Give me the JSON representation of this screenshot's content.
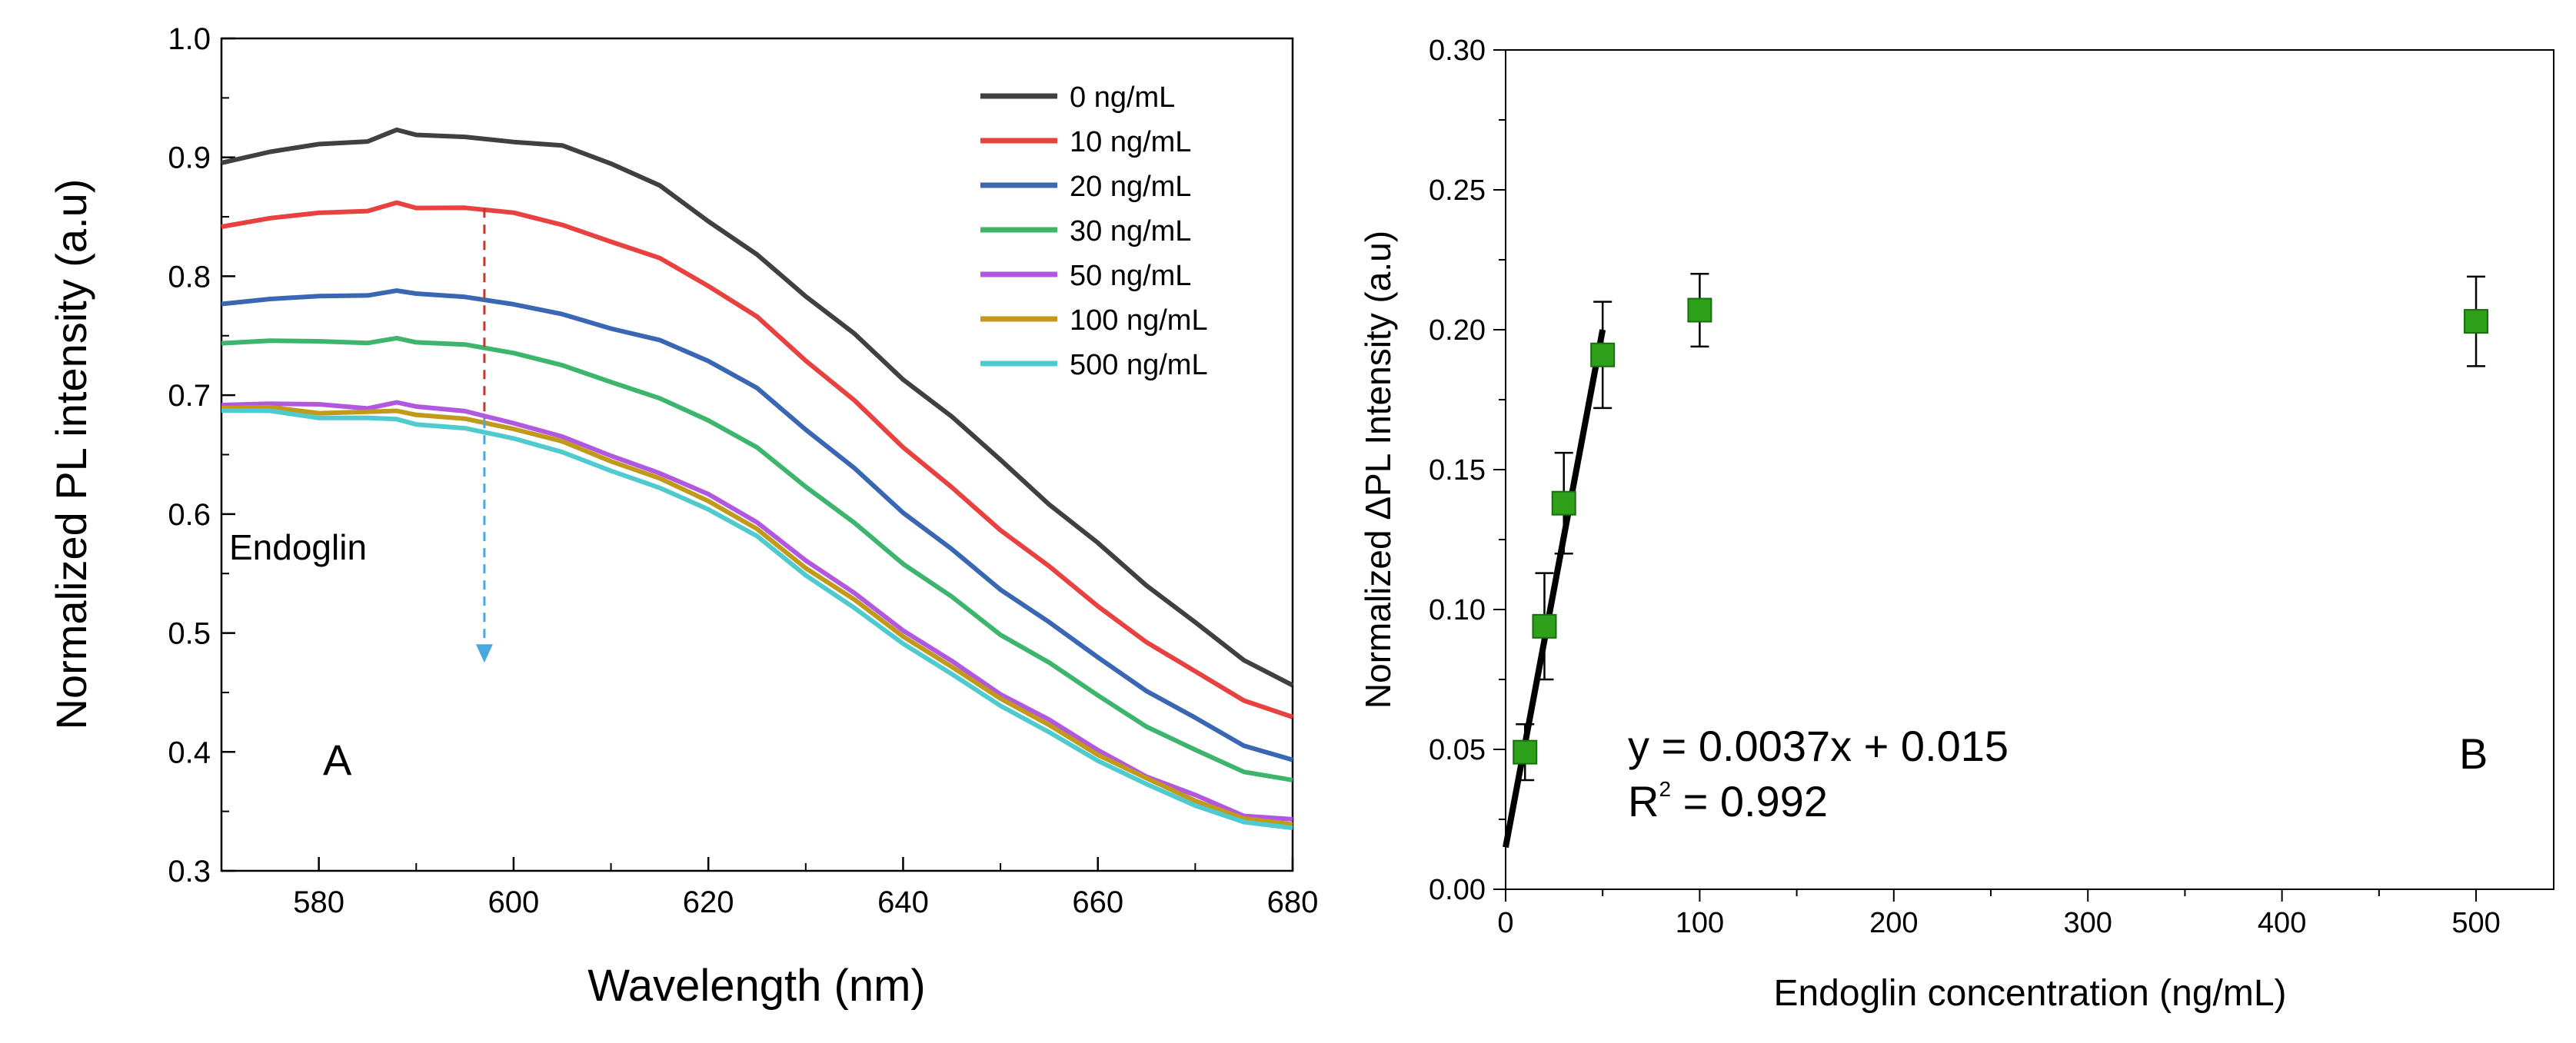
{
  "chart_data": [
    {
      "panel": "A",
      "type": "line",
      "title": "",
      "xlabel": "Wavelength (nm)",
      "ylabel": "Normalized PL intensity (a.u)",
      "xlim": [
        570,
        680
      ],
      "ylim": [
        0.3,
        1.0
      ],
      "xticks": [
        580,
        600,
        620,
        640,
        660,
        680
      ],
      "yticks": [
        0.3,
        0.4,
        0.5,
        0.6,
        0.7,
        0.8,
        0.9,
        1.0
      ],
      "panel_label": "A",
      "annotation": "Endoglin",
      "arrow": {
        "x": 597,
        "y_start": 0.857,
        "y_end": 0.475
      },
      "legend_position": "top-right",
      "x": [
        570,
        575,
        580,
        585,
        588,
        590,
        595,
        600,
        605,
        610,
        615,
        620,
        625,
        630,
        635,
        640,
        645,
        650,
        655,
        660,
        665,
        670,
        675,
        680
      ],
      "series": [
        {
          "name": "0 ng/mL",
          "color": "#404040",
          "values": [
            0.895,
            0.905,
            0.91,
            0.915,
            0.922,
            0.92,
            0.917,
            0.914,
            0.91,
            0.896,
            0.875,
            0.848,
            0.818,
            0.785,
            0.75,
            0.715,
            0.68,
            0.645,
            0.61,
            0.575,
            0.54,
            0.508,
            0.478,
            0.455
          ]
        },
        {
          "name": "10 ng/mL",
          "color": "#e8413f",
          "values": [
            0.843,
            0.848,
            0.852,
            0.856,
            0.86,
            0.859,
            0.857,
            0.855,
            0.843,
            0.83,
            0.815,
            0.793,
            0.765,
            0.73,
            0.695,
            0.658,
            0.622,
            0.588,
            0.555,
            0.523,
            0.493,
            0.466,
            0.445,
            0.428
          ]
        },
        {
          "name": "20 ng/mL",
          "color": "#3a67b3",
          "values": [
            0.778,
            0.78,
            0.782,
            0.785,
            0.786,
            0.787,
            0.782,
            0.778,
            0.768,
            0.757,
            0.746,
            0.73,
            0.705,
            0.672,
            0.638,
            0.603,
            0.57,
            0.538,
            0.508,
            0.48,
            0.452,
            0.427,
            0.407,
            0.392
          ]
        },
        {
          "name": "30 ng/mL",
          "color": "#3db56d",
          "values": [
            0.745,
            0.745,
            0.744,
            0.745,
            0.746,
            0.746,
            0.742,
            0.737,
            0.725,
            0.712,
            0.697,
            0.68,
            0.655,
            0.624,
            0.592,
            0.56,
            0.53,
            0.5,
            0.474,
            0.448,
            0.422,
            0.4,
            0.385,
            0.375
          ]
        },
        {
          "name": "50 ng/mL",
          "color": "#b257e0",
          "values": [
            0.693,
            0.692,
            0.691,
            0.69,
            0.692,
            0.692,
            0.686,
            0.678,
            0.665,
            0.65,
            0.634,
            0.618,
            0.592,
            0.562,
            0.533,
            0.504,
            0.476,
            0.45,
            0.426,
            0.402,
            0.38,
            0.362,
            0.348,
            0.342
          ]
        },
        {
          "name": "100 ng/mL",
          "color": "#c19a1a",
          "values": [
            0.69,
            0.688,
            0.686,
            0.684,
            0.685,
            0.684,
            0.68,
            0.673,
            0.661,
            0.646,
            0.63,
            0.612,
            0.586,
            0.556,
            0.527,
            0.498,
            0.47,
            0.445,
            0.421,
            0.398,
            0.377,
            0.359,
            0.345,
            0.339
          ]
        },
        {
          "name": "500 ng/mL",
          "color": "#4fcbd0",
          "values": [
            0.688,
            0.685,
            0.682,
            0.679,
            0.678,
            0.676,
            0.672,
            0.665,
            0.652,
            0.638,
            0.622,
            0.605,
            0.58,
            0.55,
            0.52,
            0.492,
            0.464,
            0.439,
            0.415,
            0.393,
            0.372,
            0.355,
            0.342,
            0.336
          ]
        }
      ]
    },
    {
      "panel": "B",
      "type": "scatter",
      "title": "",
      "xlabel": "Endoglin concentration (ng/mL)",
      "ylabel": "Normalized ΔPL Intensity (a.u)",
      "xlim": [
        0,
        540
      ],
      "ylim": [
        0,
        0.3
      ],
      "xticks": [
        0,
        100,
        200,
        300,
        400,
        500
      ],
      "yticks": [
        "0.00",
        "0.05",
        "0.10",
        "0.15",
        "0.20",
        "0.25",
        "0.30"
      ],
      "panel_label": "B",
      "equation": "y = 0.0037x + 0.015",
      "r2_prefix": "R",
      "r2_sup": "2",
      "r2_value": " = 0.992",
      "marker_color": "#2ea01a",
      "fit": {
        "slope": 0.0037,
        "intercept": 0.015,
        "x_range": [
          0,
          50
        ]
      },
      "points": [
        {
          "x": 10,
          "y": 0.049,
          "err": 0.01
        },
        {
          "x": 20,
          "y": 0.094,
          "err": 0.019
        },
        {
          "x": 30,
          "y": 0.138,
          "err": 0.018
        },
        {
          "x": 50,
          "y": 0.191,
          "err": 0.019
        },
        {
          "x": 100,
          "y": 0.207,
          "err": 0.013
        },
        {
          "x": 500,
          "y": 0.203,
          "err": 0.016
        }
      ]
    }
  ]
}
